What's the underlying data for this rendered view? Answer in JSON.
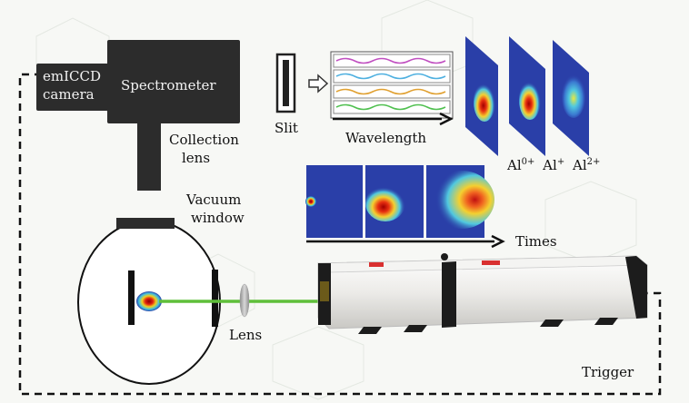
{
  "labels": {
    "camera": [
      "emICCD",
      "camera"
    ],
    "spectrometer": "Spectrometer",
    "slit": "Slit",
    "collection_lens": [
      "Collection",
      "lens"
    ],
    "wavelength": "Wavelength",
    "vacuum_window": [
      "Vacuum",
      "window"
    ],
    "times": "Times",
    "lens": "Lens",
    "trigger": "Trigger"
  },
  "ions": [
    {
      "base": "Al",
      "charge": "0+"
    },
    {
      "base": "Al",
      "charge": "+"
    },
    {
      "base": "Al",
      "charge": "2+"
    }
  ],
  "colors": {
    "laser_beam": "#5fbf3a",
    "plasma_panel": "#2a3fa8",
    "instrument_body": "#2c2c2c",
    "trigger_line": "#111111"
  },
  "icons": [
    "arrow-right-icon",
    "laser-device",
    "plasma-plume",
    "vacuum-chamber"
  ]
}
